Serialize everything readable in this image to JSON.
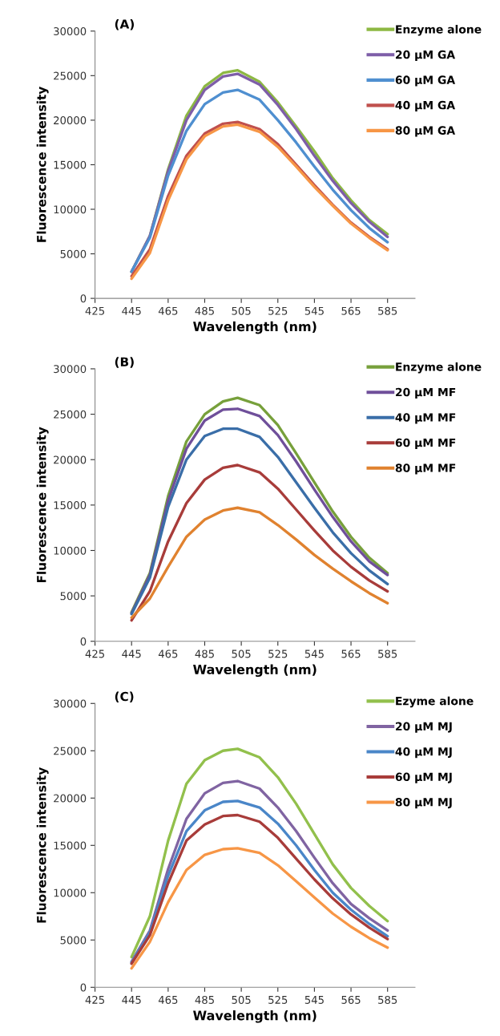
{
  "chart_data": [
    {
      "type": "line",
      "title": "(A)",
      "xlabel": "Wavelength (nm)",
      "ylabel": "Fluorescence intensity",
      "xlim": [
        425,
        600
      ],
      "xticks": [
        425,
        445,
        465,
        485,
        505,
        525,
        545,
        565,
        585
      ],
      "ylim": [
        0,
        30000
      ],
      "yticks": [
        0,
        5000,
        10000,
        15000,
        20000,
        25000,
        30000
      ],
      "grid": false,
      "legend": "top right",
      "marker": "none",
      "line_style": "solid",
      "x": [
        445,
        455,
        465,
        475,
        485,
        495,
        503,
        515,
        525,
        535,
        545,
        555,
        565,
        575,
        585
      ],
      "series": [
        {
          "name": "Enzyme alone",
          "color": "#8db843",
          "values": [
            3000,
            7000,
            14500,
            20500,
            23800,
            25300,
            25600,
            24300,
            22000,
            19300,
            16500,
            13500,
            11000,
            8800,
            7200
          ]
        },
        {
          "name": "20 µM GA",
          "color": "#7e5ea8",
          "values": [
            3000,
            7000,
            14300,
            20000,
            23400,
            24900,
            25200,
            24000,
            21700,
            19000,
            16000,
            13200,
            10700,
            8600,
            6900
          ]
        },
        {
          "name": "60 µM GA",
          "color": "#4f8fd0",
          "values": [
            3000,
            6800,
            13800,
            18800,
            21800,
            23100,
            23400,
            22300,
            20000,
            17500,
            14800,
            12200,
            9900,
            7900,
            6300
          ]
        },
        {
          "name": "40 µM GA",
          "color": "#c0504d",
          "values": [
            2500,
            5500,
            11500,
            16000,
            18500,
            19600,
            19800,
            19000,
            17300,
            15000,
            12700,
            10500,
            8500,
            6900,
            5500
          ]
        },
        {
          "name": "80 µM GA",
          "color": "#f79646",
          "values": [
            2200,
            5100,
            11000,
            15600,
            18200,
            19300,
            19500,
            18700,
            17000,
            14800,
            12500,
            10400,
            8400,
            6800,
            5400
          ]
        }
      ]
    },
    {
      "type": "line",
      "title": "(B)",
      "xlabel": "Wavelength (nm)",
      "ylabel": "Fluorescence intensity",
      "xlim": [
        425,
        600
      ],
      "xticks": [
        425,
        445,
        465,
        485,
        505,
        525,
        545,
        565,
        585
      ],
      "ylim": [
        0,
        30000
      ],
      "yticks": [
        0,
        5000,
        10000,
        15000,
        20000,
        25000,
        30000
      ],
      "grid": false,
      "legend": "top right",
      "marker": "none",
      "line_style": "solid",
      "x": [
        445,
        455,
        465,
        475,
        485,
        495,
        503,
        515,
        525,
        535,
        545,
        555,
        565,
        575,
        585
      ],
      "series": [
        {
          "name": "Enzyme alone",
          "color": "#77a03b",
          "values": [
            3200,
            7500,
            16000,
            22000,
            25000,
            26400,
            26800,
            26000,
            23800,
            20700,
            17500,
            14300,
            11500,
            9200,
            7500
          ]
        },
        {
          "name": "20 µM MF",
          "color": "#6f4f9a",
          "values": [
            3100,
            7300,
            15500,
            21200,
            24300,
            25500,
            25600,
            24800,
            22700,
            19800,
            16700,
            13700,
            11000,
            8800,
            7300
          ]
        },
        {
          "name": "40 µM MF",
          "color": "#3a6ea8",
          "values": [
            3000,
            7000,
            14800,
            20000,
            22600,
            23400,
            23400,
            22500,
            20300,
            17500,
            14700,
            12000,
            9700,
            7800,
            6300
          ]
        },
        {
          "name": "60 µM MF",
          "color": "#a83c3a",
          "values": [
            2300,
            5500,
            11000,
            15200,
            17800,
            19100,
            19400,
            18600,
            16800,
            14500,
            12200,
            10000,
            8200,
            6700,
            5500
          ]
        },
        {
          "name": "80 µM MF",
          "color": "#e0822f",
          "values": [
            2600,
            4700,
            8200,
            11500,
            13400,
            14400,
            14700,
            14200,
            12800,
            11200,
            9500,
            8000,
            6600,
            5300,
            4200
          ]
        }
      ]
    },
    {
      "type": "line",
      "title": "(C)",
      "xlabel": "Wavelength (nm)",
      "ylabel": "Fluorescence intensity",
      "xlim": [
        425,
        600
      ],
      "xticks": [
        425,
        445,
        465,
        485,
        505,
        525,
        545,
        565,
        585
      ],
      "ylim": [
        0,
        30000
      ],
      "yticks": [
        0,
        5000,
        10000,
        15000,
        20000,
        25000,
        30000
      ],
      "grid": false,
      "legend": "top right",
      "marker": "none",
      "line_style": "solid",
      "x": [
        445,
        455,
        465,
        475,
        485,
        495,
        503,
        515,
        525,
        535,
        545,
        555,
        565,
        575,
        585
      ],
      "series": [
        {
          "name": "Ezyme alone",
          "color": "#92c04c",
          "values": [
            3200,
            7500,
            15500,
            21500,
            24000,
            25000,
            25200,
            24300,
            22200,
            19400,
            16200,
            13000,
            10500,
            8600,
            7000
          ]
        },
        {
          "name": "20 µM MJ",
          "color": "#8064a2",
          "values": [
            2700,
            6000,
            12500,
            17800,
            20500,
            21600,
            21800,
            21000,
            19000,
            16500,
            13700,
            11000,
            8800,
            7300,
            6000
          ]
        },
        {
          "name": "40 µM MJ",
          "color": "#4a86c8",
          "values": [
            2600,
            5800,
            11800,
            16500,
            18700,
            19600,
            19700,
            19000,
            17300,
            15000,
            12400,
            10000,
            8200,
            6700,
            5400
          ]
        },
        {
          "name": "60 µM MJ",
          "color": "#a83c3a",
          "values": [
            2500,
            5500,
            11000,
            15500,
            17200,
            18100,
            18200,
            17500,
            15800,
            13600,
            11400,
            9400,
            7700,
            6300,
            5100
          ]
        },
        {
          "name": "80 µM MJ",
          "color": "#f79646",
          "values": [
            2000,
            4800,
            9000,
            12400,
            14000,
            14600,
            14700,
            14200,
            12900,
            11200,
            9500,
            7800,
            6400,
            5200,
            4200
          ]
        }
      ]
    }
  ]
}
